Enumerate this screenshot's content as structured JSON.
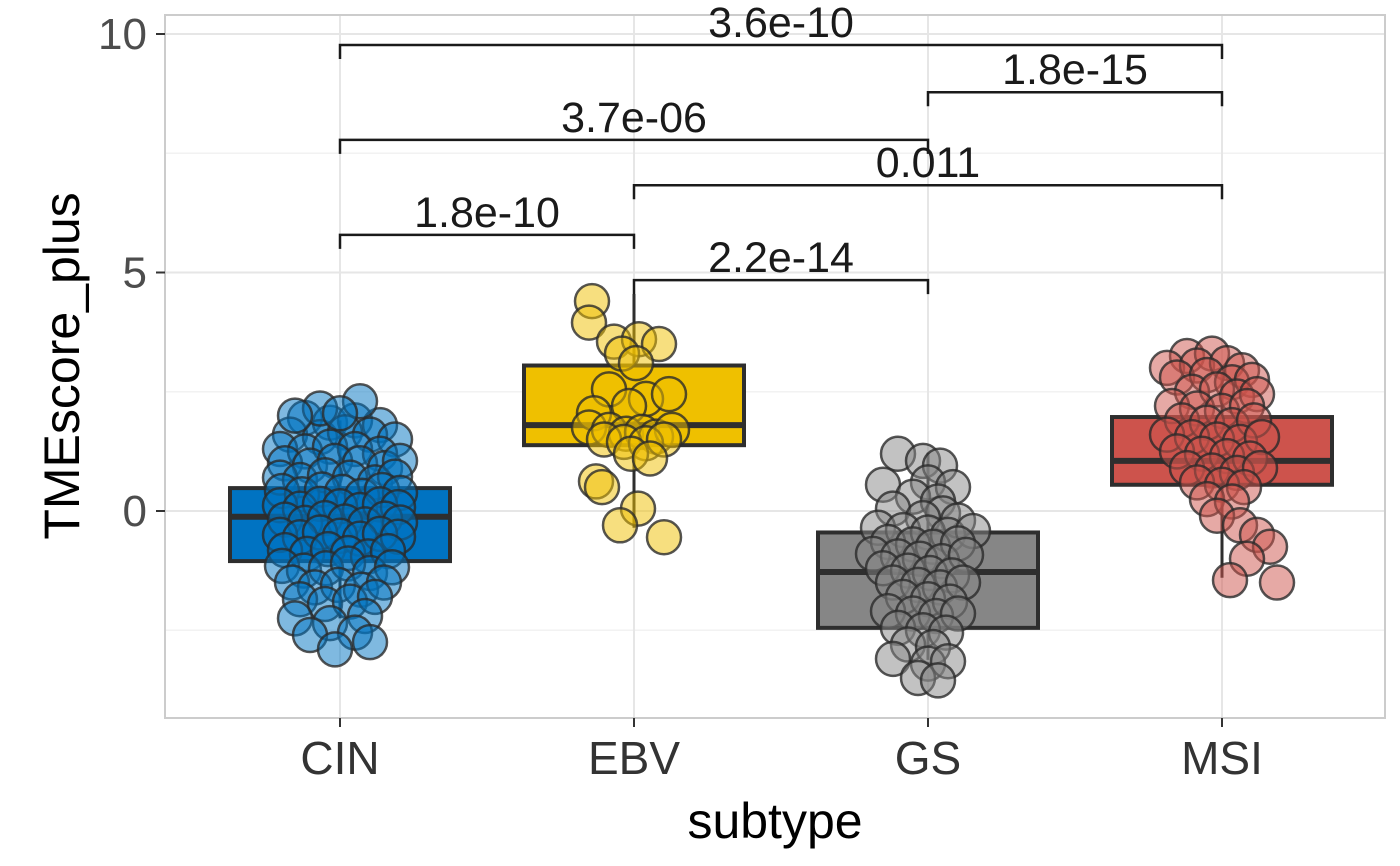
{
  "chart_data": {
    "type": "boxplot",
    "title": "",
    "xlabel": "subtype",
    "ylabel": "TMEscore_plus",
    "categories": [
      "CIN",
      "EBV",
      "GS",
      "MSI"
    ],
    "ylim": [
      -4.35,
      10.4
    ],
    "yticks_major": [
      0,
      5,
      10
    ],
    "yticks_minor": [
      -2.5,
      2.5,
      7.5
    ],
    "grid": true,
    "legend": "none",
    "style": {
      "grid_major": "#e6e6e6",
      "grid_minor": "#f2f2f2",
      "panel_border": "#cccccc",
      "box_line": "#2e2e2e",
      "point_stroke": "#2b2b2b",
      "tick_mark": "#333333",
      "tick_text": "#4d4d4d",
      "x_tick_text": "#333333",
      "bracket_color": "#1a1a1a"
    },
    "boxes": [
      {
        "category": "CIN",
        "color": "#0073C2",
        "q1": -1.05,
        "median": -0.12,
        "q3": 0.48,
        "whisker_low": -2.25,
        "whisker_high": 1.9
      },
      {
        "category": "EBV",
        "color": "#EFC000",
        "q1": 1.38,
        "median": 1.8,
        "q3": 3.05,
        "whisker_low": -0.35,
        "whisker_high": 4.55
      },
      {
        "category": "GS",
        "color": "#868686",
        "q1": -2.45,
        "median": -1.28,
        "q3": -0.45,
        "whisker_low": -3.12,
        "whisker_high": 1.22
      },
      {
        "category": "MSI",
        "color": "#CD534C",
        "q1": 0.55,
        "median": 1.05,
        "q3": 1.97,
        "whisker_low": -1.4,
        "whisker_high": 2.9
      }
    ],
    "points": {
      "CIN": [
        [
          -35,
          1.95
        ],
        [
          -10,
          1.85
        ],
        [
          15,
          1.9
        ],
        [
          40,
          1.8
        ],
        [
          -50,
          1.6
        ],
        [
          -20,
          1.55
        ],
        [
          5,
          1.65
        ],
        [
          30,
          1.6
        ],
        [
          55,
          1.5
        ],
        [
          -60,
          1.3
        ],
        [
          -35,
          1.25
        ],
        [
          -10,
          1.35
        ],
        [
          15,
          1.3
        ],
        [
          40,
          1.2
        ],
        [
          -55,
          1.0
        ],
        [
          -30,
          0.95
        ],
        [
          -5,
          1.05
        ],
        [
          20,
          1.0
        ],
        [
          45,
          0.9
        ],
        [
          60,
          1.05
        ],
        [
          -60,
          0.7
        ],
        [
          -40,
          0.65
        ],
        [
          -15,
          0.75
        ],
        [
          10,
          0.7
        ],
        [
          35,
          0.6
        ],
        [
          55,
          0.72
        ],
        [
          -58,
          0.42
        ],
        [
          -38,
          0.35
        ],
        [
          -18,
          0.45
        ],
        [
          2,
          0.4
        ],
        [
          22,
          0.32
        ],
        [
          42,
          0.44
        ],
        [
          60,
          0.38
        ],
        [
          -60,
          0.12
        ],
        [
          -40,
          0.05
        ],
        [
          -20,
          0.15
        ],
        [
          0,
          0.1
        ],
        [
          20,
          0.02
        ],
        [
          40,
          0.14
        ],
        [
          58,
          0.08
        ],
        [
          -55,
          -0.18
        ],
        [
          -35,
          -0.25
        ],
        [
          -15,
          -0.15
        ],
        [
          5,
          -0.22
        ],
        [
          25,
          -0.28
        ],
        [
          45,
          -0.16
        ],
        [
          60,
          -0.24
        ],
        [
          -60,
          -0.5
        ],
        [
          -40,
          -0.55
        ],
        [
          -20,
          -0.45
        ],
        [
          0,
          -0.52
        ],
        [
          20,
          -0.58
        ],
        [
          40,
          -0.48
        ],
        [
          58,
          -0.54
        ],
        [
          -55,
          -0.82
        ],
        [
          -33,
          -0.9
        ],
        [
          -12,
          -0.8
        ],
        [
          8,
          -0.88
        ],
        [
          28,
          -0.95
        ],
        [
          48,
          -0.84
        ],
        [
          -58,
          -1.15
        ],
        [
          -36,
          -1.25
        ],
        [
          -14,
          -1.2
        ],
        [
          8,
          -1.1
        ],
        [
          30,
          -1.3
        ],
        [
          52,
          -1.18
        ],
        [
          -48,
          -1.5
        ],
        [
          -25,
          -1.6
        ],
        [
          -2,
          -1.55
        ],
        [
          21,
          -1.65
        ],
        [
          44,
          -1.5
        ],
        [
          -40,
          -1.85
        ],
        [
          -15,
          -1.95
        ],
        [
          10,
          -1.9
        ],
        [
          35,
          -1.8
        ],
        [
          -45,
          -2.25
        ],
        [
          -10,
          -2.35
        ],
        [
          25,
          -2.2
        ],
        [
          -30,
          -2.6
        ],
        [
          15,
          -2.55
        ],
        [
          -5,
          -2.9
        ],
        [
          30,
          -2.75
        ],
        [
          -20,
          2.15
        ],
        [
          20,
          2.3
        ],
        [
          0,
          2.05
        ],
        [
          -45,
          2.0
        ]
      ],
      "EBV": [
        [
          -42,
          4.4
        ],
        [
          -45,
          3.95
        ],
        [
          -20,
          3.55
        ],
        [
          5,
          3.6
        ],
        [
          25,
          3.5
        ],
        [
          -12,
          3.3
        ],
        [
          2,
          3.1
        ],
        [
          -25,
          2.55
        ],
        [
          12,
          2.35
        ],
        [
          35,
          2.45
        ],
        [
          -5,
          2.2
        ],
        [
          -40,
          2.05
        ],
        [
          -45,
          1.75
        ],
        [
          -25,
          1.7
        ],
        [
          -8,
          1.62
        ],
        [
          8,
          1.66
        ],
        [
          22,
          1.56
        ],
        [
          38,
          1.7
        ],
        [
          -30,
          1.5
        ],
        [
          -10,
          1.45
        ],
        [
          12,
          1.42
        ],
        [
          30,
          1.5
        ],
        [
          -3,
          1.2
        ],
        [
          16,
          1.1
        ],
        [
          -38,
          0.62
        ],
        [
          -32,
          0.5
        ],
        [
          4,
          0.05
        ],
        [
          -14,
          -0.3
        ],
        [
          30,
          -0.55
        ]
      ],
      "GS": [
        [
          -30,
          1.2
        ],
        [
          -5,
          1.05
        ],
        [
          12,
          0.95
        ],
        [
          -45,
          0.55
        ],
        [
          0,
          0.6
        ],
        [
          25,
          0.5
        ],
        [
          -15,
          0.3
        ],
        [
          10,
          0.2
        ],
        [
          -35,
          0.05
        ],
        [
          15,
          -0.05
        ],
        [
          -5,
          -0.15
        ],
        [
          30,
          -0.2
        ],
        [
          -50,
          -0.35
        ],
        [
          -25,
          -0.4
        ],
        [
          0,
          -0.45
        ],
        [
          20,
          -0.5
        ],
        [
          45,
          -0.42
        ],
        [
          -40,
          -0.65
        ],
        [
          -15,
          -0.7
        ],
        [
          5,
          -0.75
        ],
        [
          30,
          -0.68
        ],
        [
          -55,
          -0.9
        ],
        [
          -30,
          -0.95
        ],
        [
          -8,
          -1.0
        ],
        [
          14,
          -1.05
        ],
        [
          38,
          -0.92
        ],
        [
          -45,
          -1.2
        ],
        [
          -20,
          -1.25
        ],
        [
          2,
          -1.3
        ],
        [
          24,
          -1.35
        ],
        [
          -35,
          -1.5
        ],
        [
          -10,
          -1.55
        ],
        [
          12,
          -1.6
        ],
        [
          35,
          -1.5
        ],
        [
          -25,
          -1.8
        ],
        [
          0,
          -1.85
        ],
        [
          22,
          -1.9
        ],
        [
          -40,
          -2.1
        ],
        [
          -15,
          -2.15
        ],
        [
          8,
          -2.2
        ],
        [
          30,
          -2.15
        ],
        [
          -30,
          -2.45
        ],
        [
          -5,
          -2.5
        ],
        [
          18,
          -2.55
        ],
        [
          -20,
          -2.8
        ],
        [
          5,
          -2.85
        ],
        [
          -35,
          -3.1
        ],
        [
          0,
          -3.2
        ],
        [
          20,
          -3.15
        ],
        [
          -10,
          -3.5
        ],
        [
          10,
          -3.55
        ]
      ],
      "MSI": [
        [
          -35,
          3.25
        ],
        [
          -10,
          3.3
        ],
        [
          -55,
          3.0
        ],
        [
          -25,
          3.05
        ],
        [
          5,
          3.1
        ],
        [
          20,
          2.95
        ],
        [
          -45,
          2.8
        ],
        [
          -15,
          2.85
        ],
        [
          10,
          2.7
        ],
        [
          30,
          2.75
        ],
        [
          -30,
          2.5
        ],
        [
          -5,
          2.55
        ],
        [
          15,
          2.4
        ],
        [
          35,
          2.45
        ],
        [
          -50,
          2.2
        ],
        [
          -25,
          2.15
        ],
        [
          0,
          2.1
        ],
        [
          25,
          2.2
        ],
        [
          -40,
          1.9
        ],
        [
          -15,
          1.85
        ],
        [
          10,
          1.8
        ],
        [
          32,
          1.9
        ],
        [
          -55,
          1.6
        ],
        [
          -30,
          1.55
        ],
        [
          -5,
          1.5
        ],
        [
          18,
          1.45
        ],
        [
          40,
          1.55
        ],
        [
          -45,
          1.25
        ],
        [
          -20,
          1.2
        ],
        [
          5,
          1.15
        ],
        [
          28,
          1.1
        ],
        [
          -35,
          0.9
        ],
        [
          -10,
          0.85
        ],
        [
          15,
          0.8
        ],
        [
          38,
          0.9
        ],
        [
          -25,
          0.6
        ],
        [
          0,
          0.55
        ],
        [
          22,
          0.5
        ],
        [
          -15,
          0.25
        ],
        [
          10,
          0.2
        ],
        [
          -5,
          -0.1
        ],
        [
          18,
          -0.3
        ],
        [
          35,
          -0.5
        ],
        [
          48,
          -0.75
        ],
        [
          25,
          -1.0
        ],
        [
          8,
          -1.45
        ],
        [
          55,
          -1.5
        ]
      ]
    },
    "comparisons": [
      {
        "group1": "CIN",
        "group2": "MSI",
        "p_label": "3.6e-10",
        "bar_y": 9.77
      },
      {
        "group1": "GS",
        "group2": "MSI",
        "p_label": "1.8e-15",
        "bar_y": 8.78
      },
      {
        "group1": "CIN",
        "group2": "GS",
        "p_label": "3.7e-06",
        "bar_y": 7.78
      },
      {
        "group1": "EBV",
        "group2": "MSI",
        "p_label": "0.011",
        "bar_y": 6.83
      },
      {
        "group1": "CIN",
        "group2": "EBV",
        "p_label": "1.8e-10",
        "bar_y": 5.79
      },
      {
        "group1": "EBV",
        "group2": "GS",
        "p_label": "2.2e-14",
        "bar_y": 4.84
      }
    ]
  }
}
